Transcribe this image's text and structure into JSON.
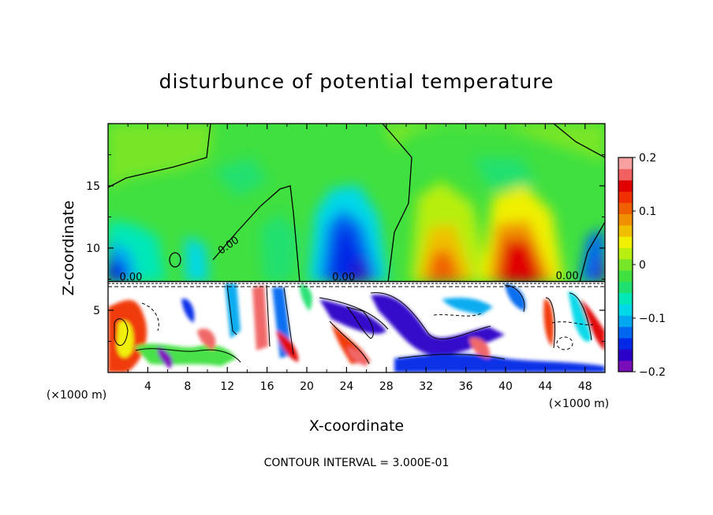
{
  "chart_data": {
    "type": "heatmap",
    "title": "disturbunce of potential temperature",
    "xlabel": "X-coordinate",
    "ylabel": "Z-coordinate",
    "x_unit_label": "(×1000 m)",
    "z_unit_label": "(×1000 m)",
    "x_ticks": [
      4,
      8,
      12,
      16,
      20,
      24,
      28,
      32,
      36,
      40,
      44,
      48
    ],
    "y_ticks": [
      5,
      10,
      15
    ],
    "xlim": [
      0,
      50
    ],
    "ylim": [
      0,
      20
    ],
    "contour_labels": [
      {
        "text": "0.00",
        "x": 12.3,
        "z": 10.0
      },
      {
        "text": "0.00",
        "x": 2.3,
        "z": 7.4
      },
      {
        "text": "0.00",
        "x": 23.7,
        "z": 7.4
      },
      {
        "text": "0.00",
        "x": 46.2,
        "z": 7.5
      }
    ],
    "footer": "CONTOUR INTERVAL = 3.000E-01",
    "colorbar": {
      "min": -0.2,
      "max": 0.2,
      "tick_labels": [
        "0.2",
        "0.1",
        "0",
        "−0.1",
        "−0.2"
      ],
      "tick_values": [
        0.2,
        0.1,
        0,
        -0.1,
        -0.2
      ],
      "colors": [
        "#7a0dba",
        "#2a00c8",
        "#0028e6",
        "#0068f0",
        "#00a8f0",
        "#00d8e8",
        "#00e8b8",
        "#20e070",
        "#40e040",
        "#78e628",
        "#b8ee10",
        "#f0f000",
        "#f0c000",
        "#f09000",
        "#f06000",
        "#f03000",
        "#e00000",
        "#f06060",
        "#f8a0a0"
      ]
    }
  }
}
